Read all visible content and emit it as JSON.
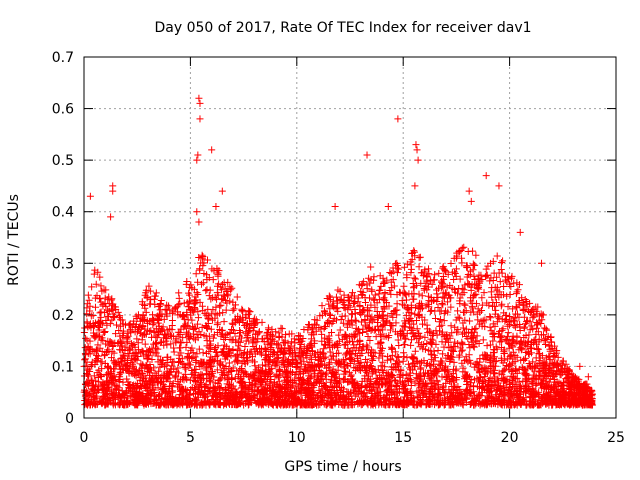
{
  "chart_data": {
    "type": "scatter",
    "title": "Day 050 of 2017, Rate Of TEC Index for receiver dav1",
    "xlabel": "GPS time / hours",
    "ylabel": "ROTI / TECUs",
    "xlim": [
      0,
      25
    ],
    "ylim": [
      0,
      0.7
    ],
    "xticks": [
      0,
      5,
      10,
      15,
      20,
      25
    ],
    "yticks": [
      0,
      0.1,
      0.2,
      0.3,
      0.4,
      0.5,
      0.6,
      0.7
    ],
    "grid": true,
    "marker": "+",
    "color": "#ff0000",
    "series": [
      {
        "name": "ROTI",
        "points": [
          [
            0.3,
            0.43
          ],
          [
            1.35,
            0.45
          ],
          [
            1.35,
            0.44
          ],
          [
            1.25,
            0.39
          ],
          [
            5.4,
            0.62
          ],
          [
            5.45,
            0.61
          ],
          [
            5.45,
            0.58
          ],
          [
            5.3,
            0.5
          ],
          [
            5.35,
            0.51
          ],
          [
            6.0,
            0.52
          ],
          [
            6.2,
            0.41
          ],
          [
            6.5,
            0.44
          ],
          [
            5.3,
            0.4
          ],
          [
            5.4,
            0.38
          ],
          [
            11.8,
            0.41
          ],
          [
            13.3,
            0.51
          ],
          [
            14.75,
            0.58
          ],
          [
            15.6,
            0.53
          ],
          [
            15.65,
            0.52
          ],
          [
            15.55,
            0.45
          ],
          [
            15.7,
            0.5
          ],
          [
            14.3,
            0.41
          ],
          [
            18.9,
            0.47
          ],
          [
            19.5,
            0.45
          ],
          [
            18.1,
            0.44
          ],
          [
            18.2,
            0.42
          ],
          [
            20.5,
            0.36
          ],
          [
            21.5,
            0.3
          ],
          [
            23.3,
            0.1
          ],
          [
            23.7,
            0.08
          ],
          [
            23.5,
            0.05
          ]
        ]
      }
    ],
    "envelope": [
      [
        0.0,
        0.2
      ],
      [
        0.5,
        0.3
      ],
      [
        1.0,
        0.25
      ],
      [
        1.5,
        0.22
      ],
      [
        2.0,
        0.18
      ],
      [
        2.5,
        0.2
      ],
      [
        3.0,
        0.26
      ],
      [
        3.5,
        0.24
      ],
      [
        4.0,
        0.22
      ],
      [
        4.5,
        0.25
      ],
      [
        5.0,
        0.28
      ],
      [
        5.5,
        0.32
      ],
      [
        6.0,
        0.3
      ],
      [
        6.5,
        0.28
      ],
      [
        7.0,
        0.25
      ],
      [
        7.5,
        0.22
      ],
      [
        8.0,
        0.2
      ],
      [
        8.5,
        0.18
      ],
      [
        9.0,
        0.18
      ],
      [
        9.5,
        0.17
      ],
      [
        10.0,
        0.16
      ],
      [
        10.5,
        0.18
      ],
      [
        11.0,
        0.2
      ],
      [
        11.5,
        0.25
      ],
      [
        12.0,
        0.26
      ],
      [
        12.5,
        0.24
      ],
      [
        13.0,
        0.27
      ],
      [
        13.5,
        0.3
      ],
      [
        14.0,
        0.28
      ],
      [
        14.5,
        0.3
      ],
      [
        15.0,
        0.3
      ],
      [
        15.5,
        0.33
      ],
      [
        16.0,
        0.3
      ],
      [
        16.5,
        0.28
      ],
      [
        17.0,
        0.3
      ],
      [
        17.5,
        0.32
      ],
      [
        18.0,
        0.35
      ],
      [
        18.5,
        0.32
      ],
      [
        19.0,
        0.3
      ],
      [
        19.5,
        0.32
      ],
      [
        20.0,
        0.28
      ],
      [
        20.5,
        0.26
      ],
      [
        21.0,
        0.22
      ],
      [
        21.5,
        0.22
      ],
      [
        22.0,
        0.15
      ],
      [
        22.4,
        0.12
      ],
      [
        23.1,
        0.08
      ],
      [
        23.5,
        0.07
      ],
      [
        23.9,
        0.06
      ]
    ]
  }
}
